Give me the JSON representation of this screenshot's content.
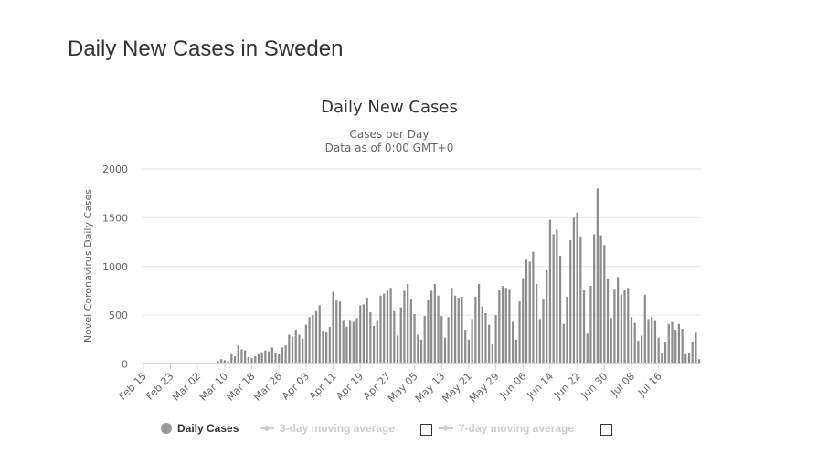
{
  "page": {
    "title": "Daily New Cases in Sweden"
  },
  "chart_data": {
    "type": "bar",
    "title": "Daily New Cases",
    "subtitle_lines": [
      "Cases per Day",
      "Data as of 0:00 GMT+0"
    ],
    "ylabel": "Novel Coronavirus Daily Cases",
    "xlabel": "",
    "ylim": [
      0,
      2000
    ],
    "y_ticks": [
      "0",
      "500",
      "1000",
      "1500",
      "2000"
    ],
    "grid": true,
    "x_tick_labels": [
      "Feb 15",
      "Feb 23",
      "Mar 02",
      "Mar 10",
      "Mar 18",
      "Mar 26",
      "Apr 03",
      "Apr 11",
      "Apr 19",
      "Apr 27",
      "May 05",
      "May 13",
      "May 21",
      "May 29",
      "Jun 06",
      "Jun 14",
      "Jun 22",
      "Jun 30",
      "Jul 08",
      "Jul 16"
    ],
    "tick_every": 8,
    "legend_position": "bottom",
    "bar_color": "#8c8c8c",
    "series": [
      {
        "name": "Daily Cases",
        "start_date": "Feb 15",
        "values": [
          0,
          0,
          0,
          0,
          0,
          0,
          0,
          0,
          0,
          0,
          0,
          0,
          0,
          0,
          0,
          0,
          0,
          0,
          0,
          0,
          0,
          10,
          30,
          50,
          40,
          30,
          100,
          80,
          190,
          150,
          140,
          70,
          60,
          80,
          100,
          120,
          140,
          130,
          170,
          110,
          100,
          170,
          190,
          300,
          280,
          350,
          300,
          260,
          400,
          480,
          500,
          550,
          600,
          340,
          330,
          380,
          740,
          650,
          640,
          450,
          380,
          450,
          430,
          470,
          600,
          610,
          680,
          530,
          390,
          450,
          700,
          720,
          750,
          780,
          550,
          290,
          580,
          750,
          820,
          670,
          510,
          300,
          250,
          490,
          650,
          750,
          820,
          700,
          490,
          270,
          480,
          780,
          700,
          680,
          690,
          350,
          250,
          460,
          690,
          820,
          590,
          520,
          400,
          200,
          500,
          760,
          800,
          780,
          770,
          430,
          250,
          640,
          880,
          1070,
          1050,
          1150,
          820,
          460,
          670,
          960,
          1480,
          1330,
          1380,
          1110,
          410,
          690,
          1270,
          1500,
          1550,
          1310,
          760,
          310,
          800,
          1330,
          1800,
          1320,
          1220,
          870,
          470,
          770,
          890,
          710,
          760,
          780,
          480,
          420,
          240,
          290,
          710,
          460,
          480,
          450,
          270,
          110,
          220,
          410,
          430,
          350,
          410,
          360,
          100,
          110,
          230,
          320,
          50
        ]
      }
    ]
  },
  "legend": {
    "items": [
      {
        "label": "Daily Cases",
        "active": true
      },
      {
        "label": "3-day moving average",
        "active": false
      },
      {
        "label": "7-day moving average",
        "active": false
      }
    ]
  },
  "colors": {
    "grid": "#e6e6e6",
    "axis": "#ccd6eb",
    "text": "#333333",
    "muted": "#666666",
    "disabled": "#cccccc"
  }
}
